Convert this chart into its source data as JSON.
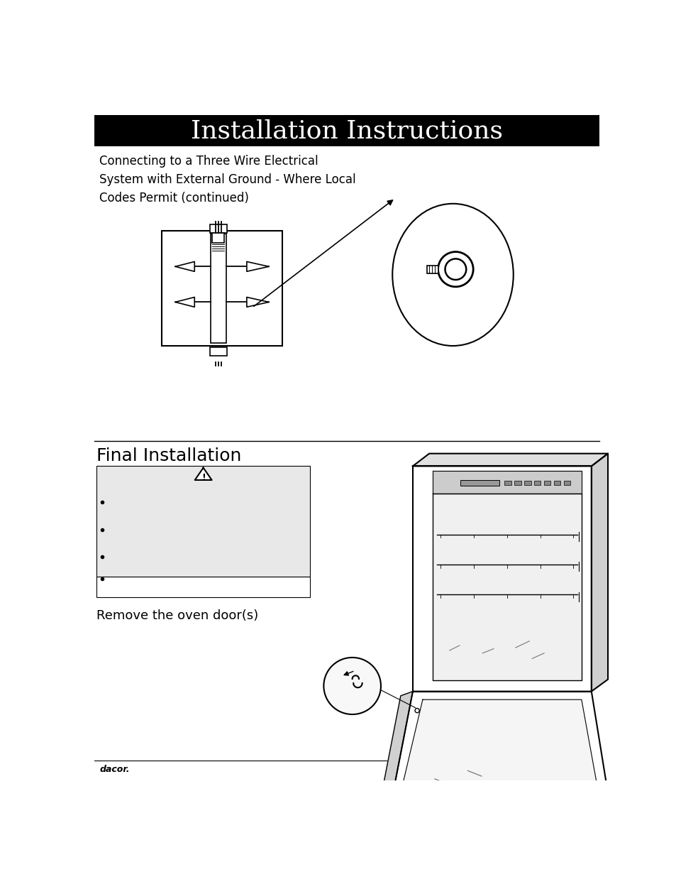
{
  "title": "Installation Instructions",
  "title_bg": "#000000",
  "title_color": "#ffffff",
  "title_fontsize": 26,
  "subtitle": "Connecting to a Three Wire Electrical\nSystem with External Ground - Where Local\nCodes Permit (continued)",
  "subtitle_fontsize": 12,
  "section2_title": "Final Installation",
  "section2_fontsize": 18,
  "remove_text": "Remove the oven door(s)",
  "remove_fontsize": 13,
  "footer_text": "dacor.",
  "footer_fontsize": 9,
  "bg_color": "#ffffff",
  "line_color": "#000000"
}
